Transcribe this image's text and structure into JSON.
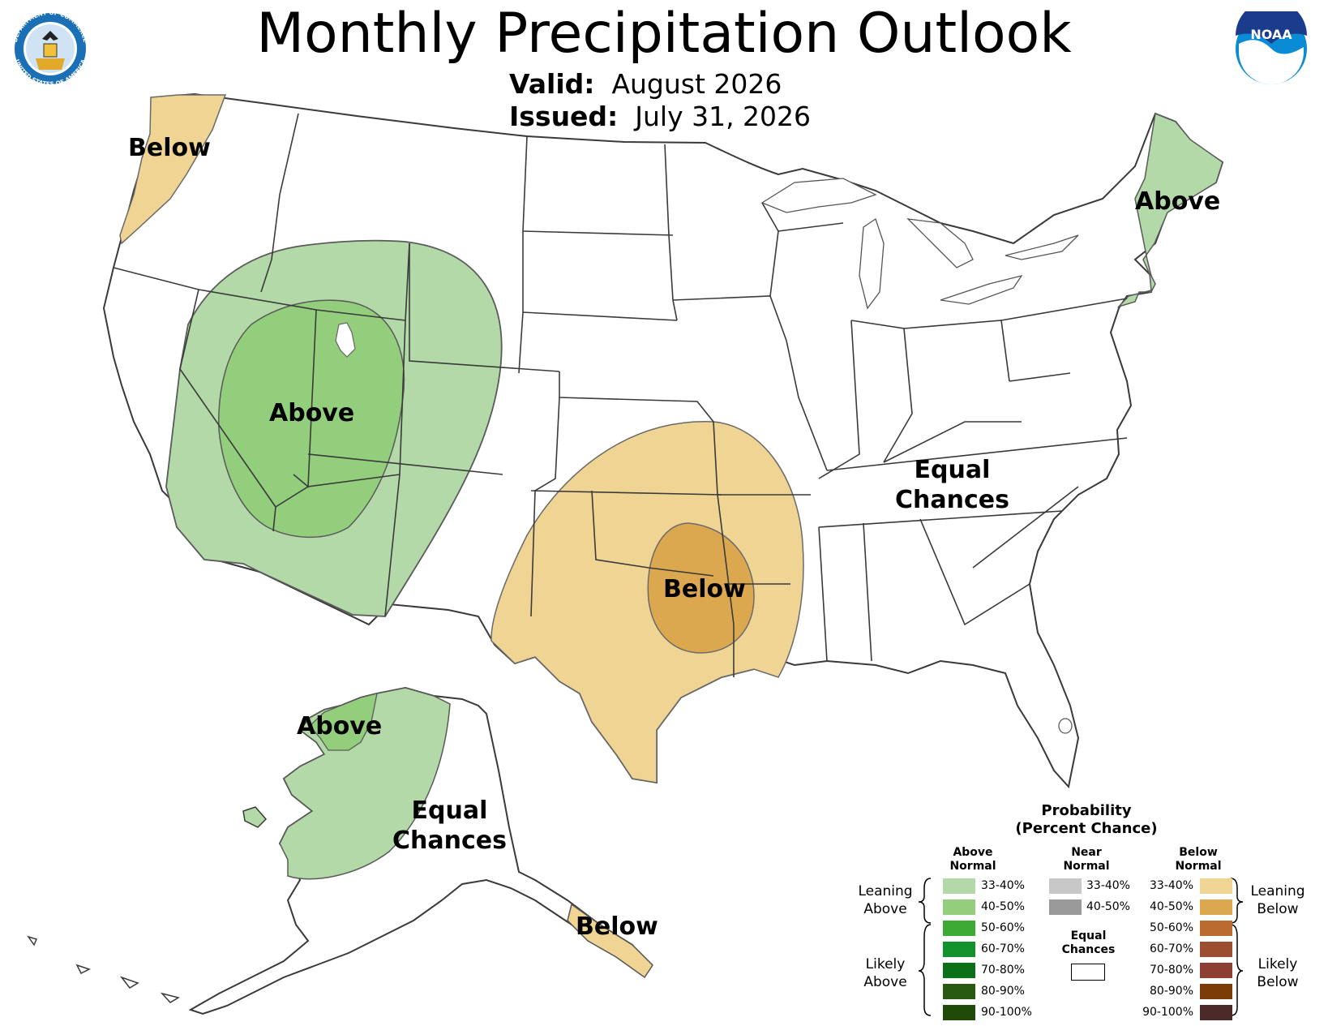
{
  "header": {
    "title": "Monthly Precipitation Outlook",
    "valid_label": "Valid:",
    "valid_value": "August 2026",
    "issued_label": "Issued:",
    "issued_value": "July 31, 2026"
  },
  "logos": {
    "commerce_ring_top": "DEPARTMENT OF COMMERCE",
    "commerce_ring_bottom": "UNITED STATES OF AMERICA",
    "noaa_text": "NOAA"
  },
  "regions": {
    "pacific_nw_below": "Below",
    "great_basin_above": "Above",
    "new_england_above": "Above",
    "southern_plains_below": "Below",
    "east_ec_line1": "Equal",
    "east_ec_line2": "Chances",
    "alaska_nw_above": "Above",
    "alaska_ec_line1": "Equal",
    "alaska_ec_line2": "Chances",
    "alaska_se_below": "Below"
  },
  "legend": {
    "title_line1": "Probability",
    "title_line2": "(Percent Chance)",
    "above_head_line1": "Above",
    "above_head_line2": "Normal",
    "near_head_line1": "Near",
    "near_head_line2": "Normal",
    "below_head_line1": "Below",
    "below_head_line2": "Normal",
    "above": [
      {
        "label": "33-40%",
        "color": "#b3d9a8"
      },
      {
        "label": "40-50%",
        "color": "#92ce7c"
      },
      {
        "label": "50-60%",
        "color": "#3daa33"
      },
      {
        "label": "60-70%",
        "color": "#12922c"
      },
      {
        "label": "70-80%",
        "color": "#0b7018"
      },
      {
        "label": "80-90%",
        "color": "#285a11"
      },
      {
        "label": "90-100%",
        "color": "#1f4a08"
      }
    ],
    "near": [
      {
        "label": "33-40%",
        "color": "#c8c8c8"
      },
      {
        "label": "40-50%",
        "color": "#9a9a9a"
      }
    ],
    "below": [
      {
        "label": "33-40%",
        "color": "#f0d493"
      },
      {
        "label": "40-50%",
        "color": "#dba850"
      },
      {
        "label": "50-60%",
        "color": "#bb6b30"
      },
      {
        "label": "60-70%",
        "color": "#9c4e31"
      },
      {
        "label": "70-80%",
        "color": "#8e3f34"
      },
      {
        "label": "80-90%",
        "color": "#7c3c07"
      },
      {
        "label": "90-100%",
        "color": "#4d2a2a"
      }
    ],
    "equal_chances_line1": "Equal",
    "equal_chances_line2": "Chances",
    "leaning_above_line1": "Leaning",
    "leaning_above_line2": "Above",
    "likely_above_line1": "Likely",
    "likely_above_line2": "Above",
    "leaning_below_line1": "Leaning",
    "leaning_below_line2": "Below",
    "likely_below_line1": "Likely",
    "likely_below_line2": "Below"
  },
  "colors": {
    "above_33_40": "#b3d9a8",
    "above_40_50": "#92ce7c",
    "below_33_40": "#f0d493",
    "below_40_50": "#dba850",
    "border": "#3a3a3a",
    "noaa_blue": "#0a8bd6",
    "noaa_dark": "#1b3c8c"
  }
}
